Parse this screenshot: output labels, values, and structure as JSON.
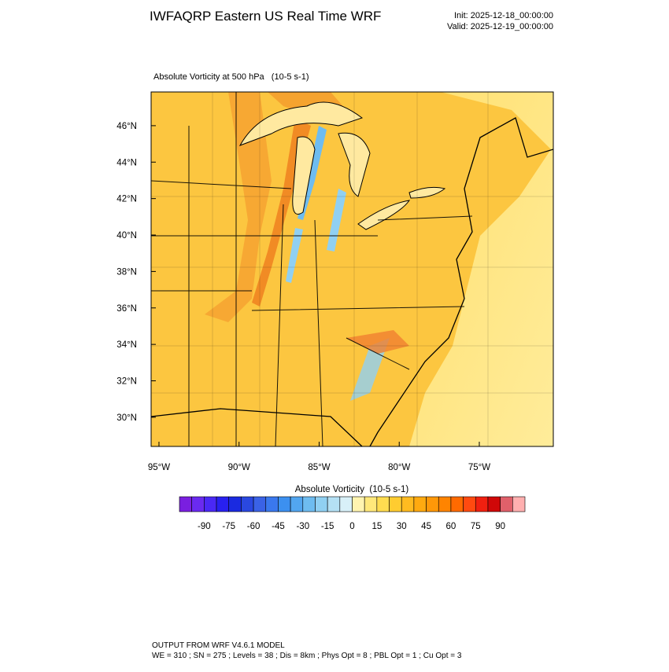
{
  "header": {
    "title": "IWFAQRP Eastern US Real Time WRF",
    "init": "Init: 2025-12-18_00:00:00",
    "valid": "Valid: 2025-12-19_00:00:00"
  },
  "map": {
    "subtitle": "Absolute Vorticity at 500 hPa   (10-5 s-1)",
    "lat_range": [
      28.4,
      47.85
    ],
    "lon_range": [
      -95.49,
      -70.38
    ],
    "lat_ticks": [
      {
        "value": 30,
        "label": "30°N"
      },
      {
        "value": 32,
        "label": "32°N"
      },
      {
        "value": 34,
        "label": "34°N"
      },
      {
        "value": 36,
        "label": "36°N"
      },
      {
        "value": 38,
        "label": "38°N"
      },
      {
        "value": 40,
        "label": "40°N"
      },
      {
        "value": 42,
        "label": "42°N"
      },
      {
        "value": 44,
        "label": "44°N"
      },
      {
        "value": 46,
        "label": "46°N"
      }
    ],
    "lon_ticks": [
      {
        "value": -95,
        "label": "95°W"
      },
      {
        "value": -90,
        "label": "90°W"
      },
      {
        "value": -85,
        "label": "85°W"
      },
      {
        "value": -80,
        "label": "80°W"
      },
      {
        "value": -75,
        "label": "75°W"
      }
    ]
  },
  "colorbar": {
    "title": "Absolute Vorticity  (10-5 s-1)",
    "range": [
      -105,
      105
    ],
    "ticks": [
      -90,
      -75,
      -60,
      -45,
      -30,
      -15,
      0,
      15,
      30,
      45,
      60,
      75,
      90
    ],
    "colors": [
      "#7a1fe0",
      "#6a2af0",
      "#4a28f5",
      "#2820f0",
      "#1a2ae0",
      "#2a48e0",
      "#3a62e6",
      "#3a78ee",
      "#3c90f0",
      "#52a6f0",
      "#6ebcf0",
      "#90d0f2",
      "#b4e0f4",
      "#d8f0f8",
      "#fff4b0",
      "#ffe87a",
      "#ffdc50",
      "#ffcc30",
      "#ffbb20",
      "#ffaa10",
      "#ff9808",
      "#ff8400",
      "#ff6a00",
      "#ff4a10",
      "#f02010",
      "#d00808",
      "#e0606a",
      "#ffb0b0"
    ]
  },
  "footer": {
    "line1": "OUTPUT FROM WRF V4.6.1 MODEL",
    "line2": "WE = 310 ; SN = 275 ; Levels = 38 ; Dis = 8km ; Phys Opt = 8 ; PBL Opt = 1 ; Cu Opt = 3"
  }
}
